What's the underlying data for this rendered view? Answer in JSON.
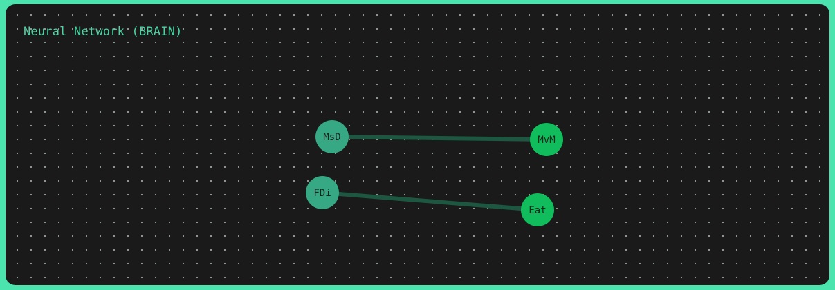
{
  "title": "Neural Network (BRAIN)",
  "colors": {
    "frame": "#4ce4ae",
    "panel": "#1a1a1a",
    "grid_dot": "#9aa59f",
    "title_text": "#49d6a4",
    "input_node": "#36a883",
    "output_node": "#10bc5c",
    "connection": "#1d5741"
  },
  "network": {
    "inputs": [
      {
        "id": "msd",
        "label": "MsD"
      },
      {
        "id": "fdi",
        "label": "FDi"
      }
    ],
    "outputs": [
      {
        "id": "mvm",
        "label": "MvM"
      },
      {
        "id": "eat",
        "label": "Eat"
      }
    ],
    "connections": [
      {
        "from": "msd",
        "to": "mvm"
      },
      {
        "from": "fdi",
        "to": "eat"
      }
    ]
  }
}
